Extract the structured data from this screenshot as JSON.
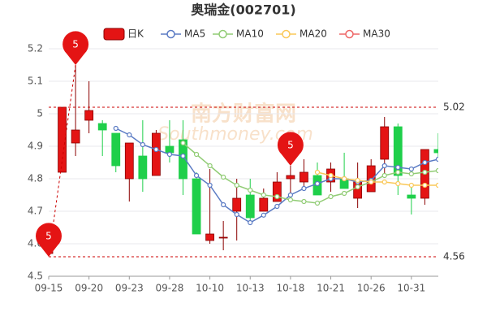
{
  "chart_data": {
    "type": "candlestick",
    "title": "奥瑞金(002701)",
    "watermark": [
      "南方财富网",
      "Southmoney.com"
    ],
    "categories": [
      "09-15",
      null,
      null,
      "09-20",
      null,
      null,
      "09-23",
      null,
      null,
      "09-28",
      null,
      null,
      "10-10",
      null,
      null,
      "10-13",
      null,
      null,
      "10-18",
      null,
      null,
      "10-21",
      null,
      null,
      "10-26",
      null,
      null,
      "10-31",
      null,
      null
    ],
    "candles": {
      "name": "日K",
      "up_color": "#e41414",
      "down_color": "#1fcf4a",
      "open": [
        4.57,
        4.82,
        4.91,
        4.98,
        4.97,
        4.94,
        4.8,
        4.87,
        4.81,
        4.9,
        4.92,
        4.8,
        4.61,
        4.62,
        4.7,
        4.75,
        4.7,
        4.73,
        4.8,
        4.79,
        4.81,
        4.79,
        4.8,
        4.74,
        4.76,
        4.86,
        4.96,
        4.75,
        4.74,
        4.89
      ],
      "close": [
        4.58,
        5.02,
        4.95,
        5.01,
        4.95,
        4.84,
        4.91,
        4.8,
        4.94,
        4.88,
        4.8,
        4.63,
        4.63,
        4.62,
        4.74,
        4.68,
        4.74,
        4.79,
        4.81,
        4.82,
        4.75,
        4.83,
        4.77,
        4.79,
        4.84,
        4.96,
        4.81,
        4.74,
        4.89,
        4.88
      ],
      "high": [
        4.6,
        5.02,
        5.15,
        5.1,
        4.98,
        4.94,
        4.91,
        4.98,
        4.95,
        4.98,
        4.98,
        4.82,
        4.83,
        4.67,
        4.8,
        4.8,
        4.77,
        4.82,
        4.84,
        4.86,
        4.85,
        4.85,
        4.88,
        4.85,
        4.86,
        4.99,
        4.97,
        4.78,
        4.89,
        4.94
      ],
      "low": [
        4.56,
        4.82,
        4.87,
        4.94,
        4.87,
        4.82,
        4.73,
        4.76,
        4.81,
        4.85,
        4.75,
        4.63,
        4.6,
        4.58,
        4.61,
        4.67,
        4.7,
        4.73,
        4.75,
        4.77,
        4.75,
        4.76,
        4.77,
        4.71,
        4.76,
        4.81,
        4.75,
        4.69,
        4.72,
        4.86
      ]
    },
    "series": [
      {
        "name": "MA5",
        "color": "#5b7bc4",
        "values": [
          null,
          null,
          null,
          null,
          null,
          4.955,
          4.935,
          4.905,
          4.89,
          4.875,
          4.87,
          4.81,
          4.78,
          4.72,
          4.69,
          4.665,
          4.688,
          4.715,
          4.75,
          4.77,
          4.785,
          4.8,
          4.8,
          4.79,
          4.795,
          4.84,
          4.835,
          4.83,
          4.85,
          4.86
        ]
      },
      {
        "name": "MA10",
        "color": "#91cc75",
        "values": [
          null,
          null,
          null,
          null,
          null,
          null,
          null,
          null,
          null,
          null,
          4.91,
          4.875,
          4.84,
          4.805,
          4.78,
          4.765,
          4.75,
          4.745,
          4.735,
          4.73,
          4.725,
          4.745,
          4.755,
          4.775,
          4.79,
          4.81,
          4.82,
          4.815,
          4.82,
          4.825
        ]
      },
      {
        "name": "MA20",
        "color": "#fac858",
        "values": [
          null,
          null,
          null,
          null,
          null,
          null,
          null,
          null,
          null,
          null,
          null,
          null,
          null,
          null,
          null,
          null,
          null,
          null,
          null,
          null,
          4.82,
          4.81,
          4.8,
          4.795,
          4.79,
          4.79,
          4.785,
          4.78,
          4.78,
          4.78
        ]
      },
      {
        "name": "MA30",
        "color": "#ee6666",
        "values": [
          null,
          null,
          null,
          null,
          null,
          null,
          null,
          null,
          null,
          null,
          null,
          null,
          null,
          null,
          null,
          null,
          null,
          null,
          null,
          null,
          null,
          null,
          null,
          null,
          null,
          null,
          null,
          null,
          null,
          null
        ]
      }
    ],
    "markers": [
      {
        "label": "5",
        "value": 5.15
      },
      {
        "label": "5",
        "value": 4.56
      },
      {
        "label": "5",
        "value": 4.84
      }
    ],
    "marker_color": "#e41414",
    "reference_lines": [
      5.02,
      4.56
    ],
    "ylim": [
      4.5,
      5.2
    ],
    "yticks": [
      4.5,
      4.6,
      4.7,
      4.8,
      4.9,
      5,
      5.1,
      5.2
    ],
    "grid": true
  }
}
